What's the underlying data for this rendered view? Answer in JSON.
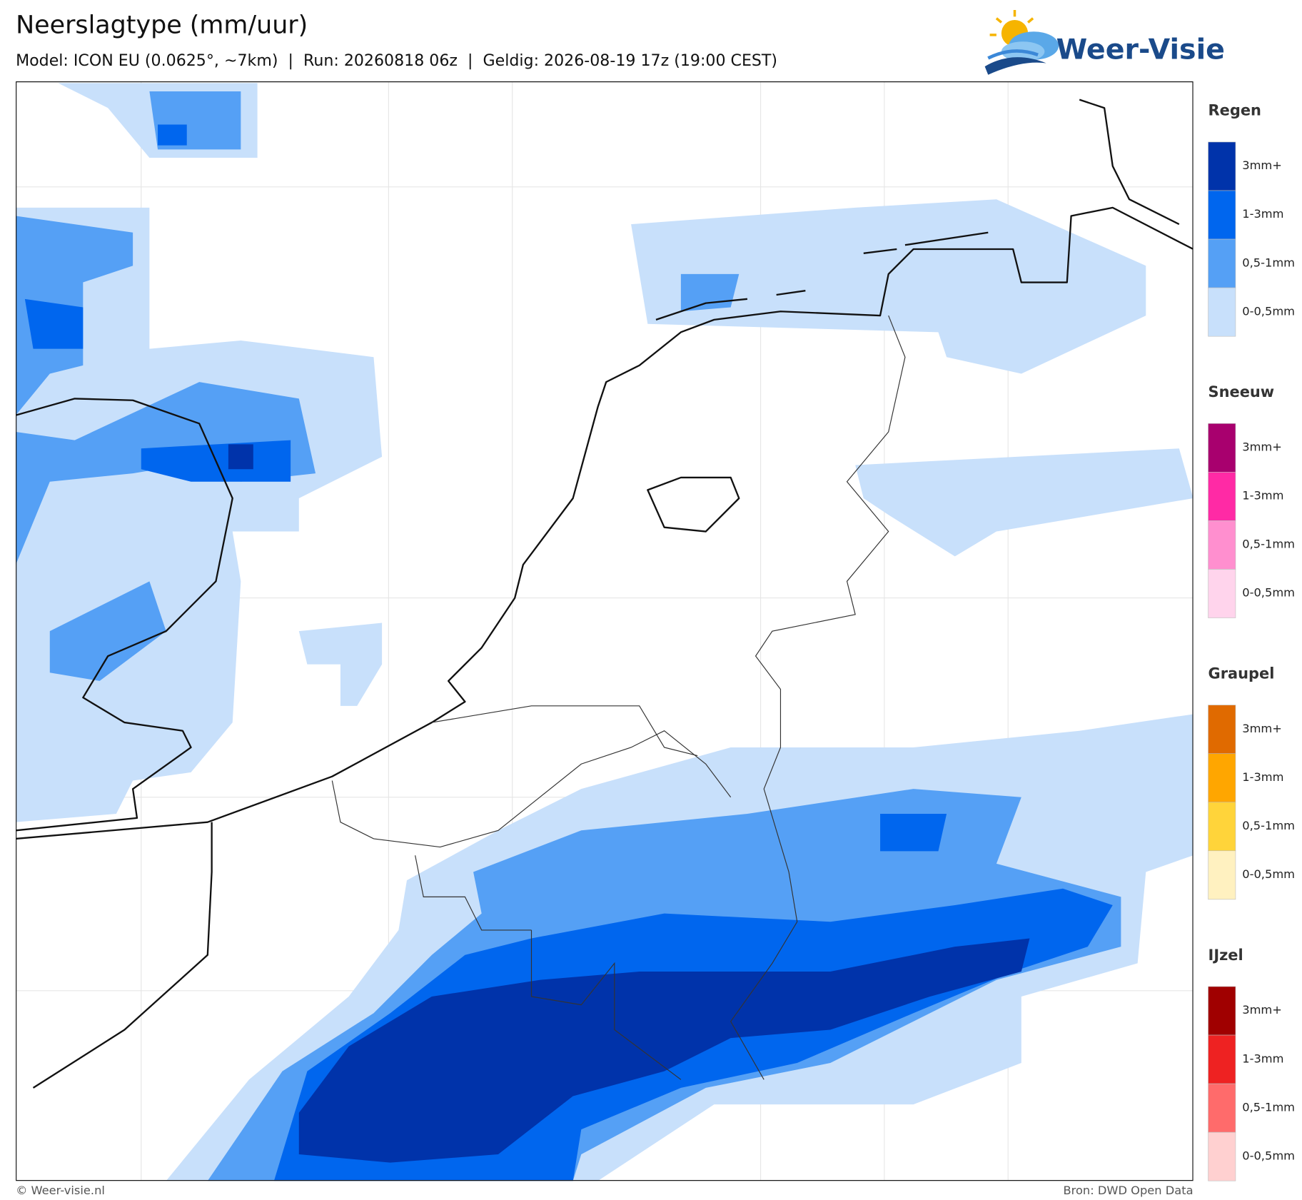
{
  "header": {
    "title": "Neerslagtype (mm/uur)",
    "subtitle": "Model: ICON EU (0.0625°, ~7km)  |  Run: 20260818 06z  |  Geldig: 2026-08-19 17z (19:00 CEST)"
  },
  "logo": {
    "text": "Weer-Visie"
  },
  "legend": [
    {
      "title": "Regen",
      "items": [
        "3mm+",
        "1-3mm",
        "0,5-1mm",
        "0-0,5mm"
      ],
      "colors": [
        "#0033aa",
        "#0066ee",
        "#55a0f5",
        "#c8e0fb"
      ]
    },
    {
      "title": "Sneeuw",
      "items": [
        "3mm+",
        "1-3mm",
        "0,5-1mm",
        "0-0,5mm"
      ],
      "colors": [
        "#a8006e",
        "#ff2aa5",
        "#ff8fcf",
        "#ffd4ec"
      ]
    },
    {
      "title": "Graupel",
      "items": [
        "3mm+",
        "1-3mm",
        "0,5-1mm",
        "0-0,5mm"
      ],
      "colors": [
        "#e06a00",
        "#ffa600",
        "#ffd43a",
        "#fff1c0"
      ]
    },
    {
      "title": "IJzel",
      "items": [
        "3mm+",
        "1-3mm",
        "0,5-1mm",
        "0-0,5mm"
      ],
      "colors": [
        "#a00000",
        "#ee2222",
        "#ff6b6b",
        "#ffd0d0"
      ]
    }
  ],
  "footer": {
    "left": "© Weer-visie.nl",
    "right": "Bron: DWD Open Data"
  }
}
